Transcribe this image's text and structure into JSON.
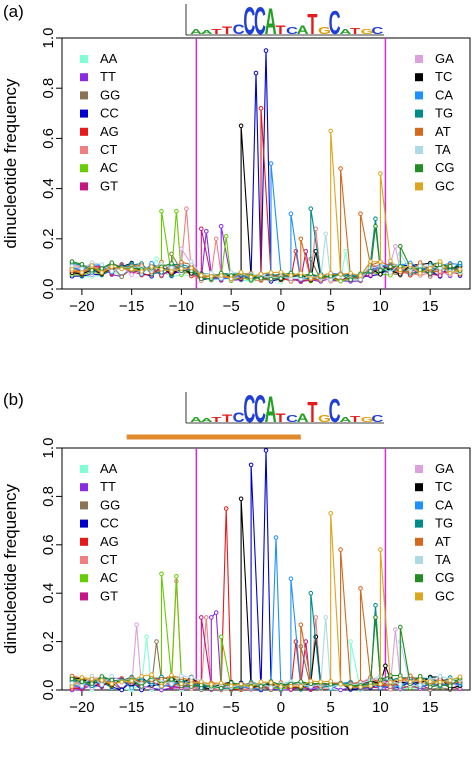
{
  "chart_data": [
    {
      "panel_label": "(a)",
      "type": "line",
      "xlabel": "dinucleotide position",
      "ylabel": "dinucleotide frequency",
      "xlim": [
        -22,
        19
      ],
      "ylim": [
        0,
        1
      ],
      "xticks": [
        -20,
        -15,
        -10,
        -5,
        0,
        5,
        10,
        15
      ],
      "yticks": [
        0.0,
        0.2,
        0.4,
        0.6,
        0.8,
        1.0
      ],
      "vlines": [
        -8.5,
        10.5
      ],
      "vline_color": "#d62bd6",
      "motif_logo": "CCAtcaTgC",
      "bar": null,
      "series": [
        {
          "name": "AA",
          "color": "#7fffd4",
          "peaks": [
            [
              -12.5,
              0.12
            ],
            [
              6.5,
              0.15
            ]
          ]
        },
        {
          "name": "TT",
          "color": "#8a2be2",
          "peaks": [
            [
              -7.5,
              0.23
            ],
            [
              -6.0,
              0.25
            ]
          ]
        },
        {
          "name": "GG",
          "color": "#8b7355",
          "peaks": [
            [
              -11.0,
              0.14
            ],
            [
              3.0,
              0.12
            ]
          ]
        },
        {
          "name": "CC",
          "color": "#0000cd",
          "peaks": [
            [
              -2.5,
              0.86
            ],
            [
              -1.5,
              0.95
            ]
          ]
        },
        {
          "name": "AG",
          "color": "#e41a1c",
          "peaks": [
            [
              -2.0,
              0.72
            ],
            [
              1.5,
              0.15
            ]
          ]
        },
        {
          "name": "CT",
          "color": "#f08080",
          "peaks": [
            [
              -9.5,
              0.32
            ],
            [
              -6.5,
              0.2
            ],
            [
              3.5,
              0.24
            ]
          ]
        },
        {
          "name": "AC",
          "color": "#66cd00",
          "peaks": [
            [
              -12.0,
              0.31
            ],
            [
              -10.5,
              0.31
            ],
            [
              -5.5,
              0.21
            ]
          ]
        },
        {
          "name": "GT",
          "color": "#c71585",
          "peaks": [
            [
              -8.0,
              0.24
            ],
            [
              2.5,
              0.15
            ]
          ]
        },
        {
          "name": "GA",
          "color": "#dda0dd",
          "peaks": [
            [
              -10.0,
              0.16
            ],
            [
              11.5,
              0.17
            ]
          ]
        },
        {
          "name": "TC",
          "color": "#000000",
          "peaks": [
            [
              -4.0,
              0.65
            ],
            [
              3.5,
              0.15
            ],
            [
              10.5,
              0.08
            ]
          ]
        },
        {
          "name": "CA",
          "color": "#1e90ff",
          "peaks": [
            [
              -1.0,
              0.5
            ],
            [
              1.0,
              0.3
            ]
          ]
        },
        {
          "name": "TG",
          "color": "#008b8b",
          "peaks": [
            [
              3.0,
              0.32
            ],
            [
              9.5,
              0.28
            ]
          ]
        },
        {
          "name": "AT",
          "color": "#d2691e",
          "peaks": [
            [
              2.0,
              0.2
            ],
            [
              6.0,
              0.48
            ],
            [
              8.0,
              0.3
            ]
          ]
        },
        {
          "name": "TA",
          "color": "#add8e6",
          "peaks": [
            [
              4.5,
              0.22
            ],
            [
              12.0,
              0.14
            ]
          ]
        },
        {
          "name": "CG",
          "color": "#228b22",
          "peaks": [
            [
              9.5,
              0.25
            ],
            [
              12.0,
              0.17
            ]
          ]
        },
        {
          "name": "GC",
          "color": "#daa520",
          "peaks": [
            [
              5.0,
              0.63
            ],
            [
              10.0,
              0.46
            ]
          ]
        }
      ]
    },
    {
      "panel_label": "(b)",
      "type": "line",
      "xlabel": "dinucleotide position",
      "ylabel": "dinucleotide frequency",
      "xlim": [
        -22,
        19
      ],
      "ylim": [
        0,
        1
      ],
      "xticks": [
        -20,
        -15,
        -10,
        -5,
        0,
        5,
        10,
        15
      ],
      "yticks": [
        0.0,
        0.2,
        0.4,
        0.6,
        0.8,
        1.0
      ],
      "vlines": [
        -8.5,
        10.5
      ],
      "vline_color": "#d62bd6",
      "motif_logo": "CCAtcaTgC",
      "bar": {
        "from": -15.5,
        "to": 2.0,
        "color": "#e08a2c"
      },
      "series": [
        {
          "name": "AA",
          "color": "#7fffd4",
          "peaks": [
            [
              -13.5,
              0.22
            ],
            [
              7.0,
              0.2
            ]
          ]
        },
        {
          "name": "TT",
          "color": "#8a2be2",
          "peaks": [
            [
              -7.0,
              0.3
            ],
            [
              -6.5,
              0.32
            ]
          ]
        },
        {
          "name": "GG",
          "color": "#8b7355",
          "peaks": [
            [
              -12.5,
              0.2
            ],
            [
              2.0,
              0.18
            ]
          ]
        },
        {
          "name": "CC",
          "color": "#0000cd",
          "peaks": [
            [
              -3.0,
              0.93
            ],
            [
              -1.5,
              0.99
            ]
          ]
        },
        {
          "name": "AG",
          "color": "#e41a1c",
          "peaks": [
            [
              -5.5,
              0.75
            ],
            [
              1.5,
              0.2
            ]
          ]
        },
        {
          "name": "CT",
          "color": "#f08080",
          "peaks": [
            [
              -10.5,
              0.45
            ],
            [
              -7.5,
              0.3
            ],
            [
              3.5,
              0.3
            ]
          ]
        },
        {
          "name": "AC",
          "color": "#66cd00",
          "peaks": [
            [
              -12.0,
              0.48
            ],
            [
              -10.5,
              0.47
            ],
            [
              -6.0,
              0.22
            ]
          ]
        },
        {
          "name": "GT",
          "color": "#c71585",
          "peaks": [
            [
              -8.0,
              0.3
            ],
            [
              2.5,
              0.2
            ]
          ]
        },
        {
          "name": "GA",
          "color": "#dda0dd",
          "peaks": [
            [
              -14.5,
              0.27
            ],
            [
              11.5,
              0.25
            ]
          ]
        },
        {
          "name": "TC",
          "color": "#000000",
          "peaks": [
            [
              -4.0,
              0.79
            ],
            [
              3.5,
              0.22
            ],
            [
              10.5,
              0.1
            ]
          ]
        },
        {
          "name": "CA",
          "color": "#1e90ff",
          "peaks": [
            [
              -0.5,
              0.63
            ],
            [
              1.0,
              0.46
            ]
          ]
        },
        {
          "name": "TG",
          "color": "#008b8b",
          "peaks": [
            [
              3.0,
              0.4
            ],
            [
              9.5,
              0.35
            ]
          ]
        },
        {
          "name": "AT",
          "color": "#d2691e",
          "peaks": [
            [
              2.0,
              0.27
            ],
            [
              6.0,
              0.58
            ],
            [
              8.0,
              0.42
            ]
          ]
        },
        {
          "name": "TA",
          "color": "#add8e6",
          "peaks": [
            [
              4.5,
              0.3
            ],
            [
              12.0,
              0.2
            ]
          ]
        },
        {
          "name": "CG",
          "color": "#228b22",
          "peaks": [
            [
              9.5,
              0.3
            ],
            [
              12.0,
              0.26
            ]
          ]
        },
        {
          "name": "GC",
          "color": "#daa520",
          "peaks": [
            [
              5.0,
              0.73
            ],
            [
              10.0,
              0.58
            ]
          ]
        }
      ]
    }
  ]
}
